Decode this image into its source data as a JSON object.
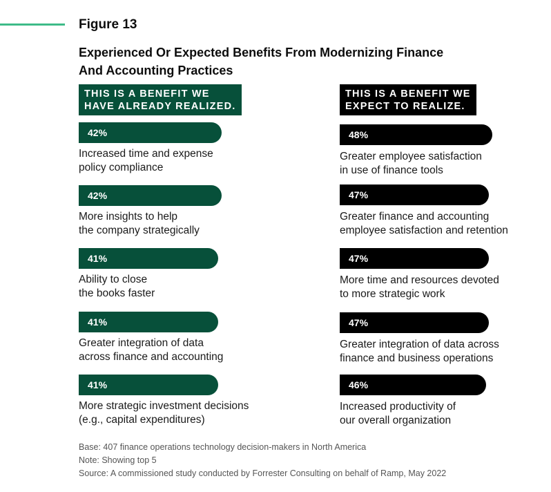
{
  "figure_label": "Figure 13",
  "title_line1": "Experienced Or Expected Benefits From Modernizing Finance",
  "title_line2": "And Accounting Practices",
  "colors": {
    "green": "#07503a",
    "black": "#000000",
    "accent": "#3dbb88"
  },
  "chart_data": {
    "type": "bar",
    "orientation": "horizontal",
    "title": "Experienced Or Expected Benefits From Modernizing Finance And Accounting Practices",
    "unit": "%",
    "xlim": [
      0,
      100
    ],
    "panels": [
      {
        "header_line1": "THIS IS A BENEFIT WE",
        "header_line2": "HAVE ALREADY REALIZED.",
        "color": "#07503a",
        "items": [
          {
            "value": 42,
            "display": "42%",
            "label_line1": "Increased time and expense",
            "label_line2": "policy compliance"
          },
          {
            "value": 42,
            "display": "42%",
            "label_line1": "More insights to help",
            "label_line2": "the company strategically"
          },
          {
            "value": 41,
            "display": "41%",
            "label_line1": "Ability to close",
            "label_line2": "the books faster"
          },
          {
            "value": 41,
            "display": "41%",
            "label_line1": "Greater integration of data",
            "label_line2": "across finance and accounting"
          },
          {
            "value": 41,
            "display": "41%",
            "label_line1": "More strategic investment decisions",
            "label_line2": "(e.g., capital expenditures)"
          }
        ]
      },
      {
        "header_line1": "THIS IS A BENEFIT WE",
        "header_line2": "EXPECT TO REALIZE.",
        "color": "#000000",
        "items": [
          {
            "value": 48,
            "display": "48%",
            "label_line1": "Greater employee satisfaction",
            "label_line2": "in use of finance tools"
          },
          {
            "value": 47,
            "display": "47%",
            "label_line1": "Greater finance and accounting",
            "label_line2": "employee satisfaction and retention"
          },
          {
            "value": 47,
            "display": "47%",
            "label_line1": "More time and resources devoted",
            "label_line2": "to more strategic work"
          },
          {
            "value": 47,
            "display": "47%",
            "label_line1": "Greater integration of data across",
            "label_line2": "finance and business operations"
          },
          {
            "value": 46,
            "display": "46%",
            "label_line1": "Increased productivity of",
            "label_line2": "our overall organization"
          }
        ]
      }
    ]
  },
  "footnotes": {
    "base": "Base: 407 finance operations technology decision-makers in North America",
    "note": "Note: Showing top 5",
    "source": "Source: A commissioned study conducted by Forrester Consulting on behalf of Ramp, May 2022"
  }
}
